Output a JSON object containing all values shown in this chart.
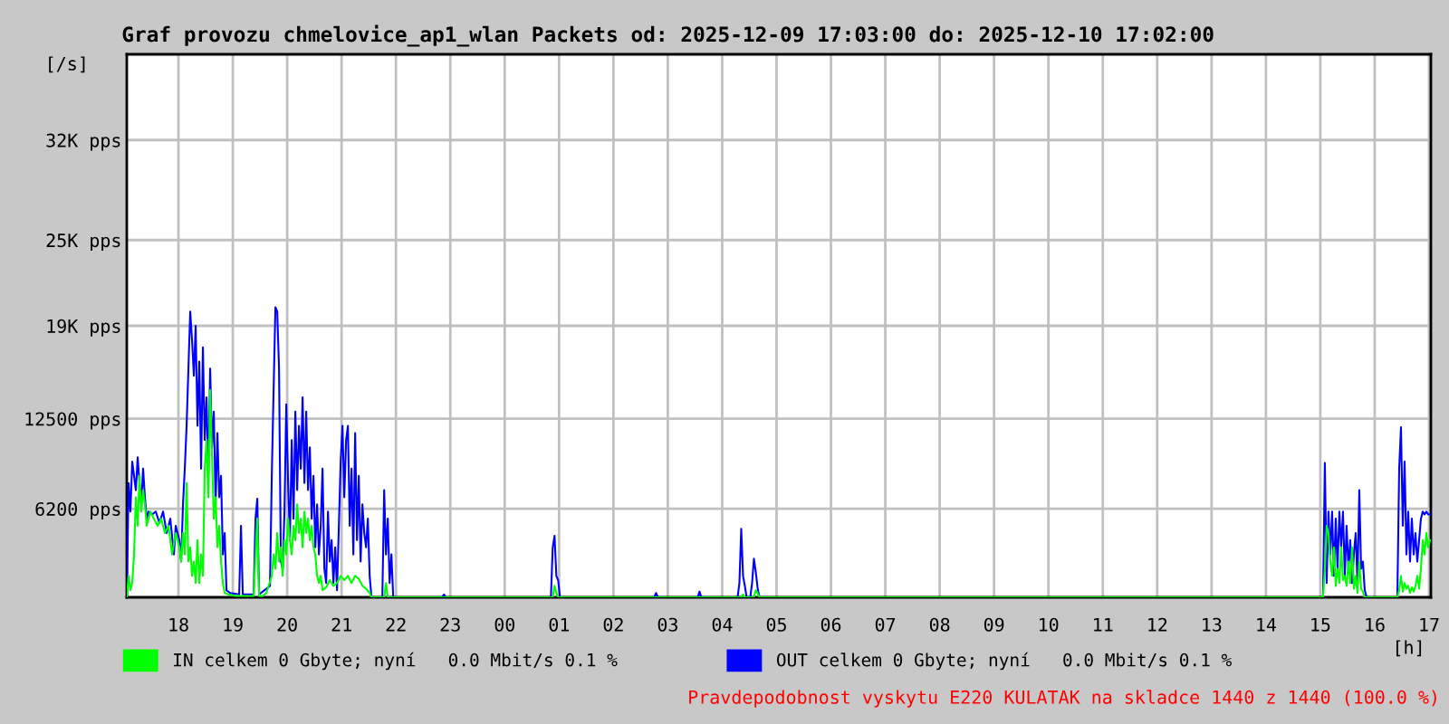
{
  "chart_data": {
    "type": "line",
    "title": "Graf provozu chmelovice_ap1_wlan Packets od: 2025-12-09 17:03:00 do: 2025-12-10 17:02:00",
    "xlabel": "[h]",
    "ylabel": "[/s]",
    "xlim": [
      "2025-12-09T17:03",
      "2025-12-10T17:02"
    ],
    "xticks": [
      {
        "value": "2025-12-09T18:00",
        "label": "18"
      },
      {
        "value": "2025-12-09T19:00",
        "label": "19"
      },
      {
        "value": "2025-12-09T20:00",
        "label": "20"
      },
      {
        "value": "2025-12-09T21:00",
        "label": "21"
      },
      {
        "value": "2025-12-09T22:00",
        "label": "22"
      },
      {
        "value": "2025-12-09T23:00",
        "label": "23"
      },
      {
        "value": "2025-12-10T00:00",
        "label": "00"
      },
      {
        "value": "2025-12-10T01:00",
        "label": "01"
      },
      {
        "value": "2025-12-10T02:00",
        "label": "02"
      },
      {
        "value": "2025-12-10T03:00",
        "label": "03"
      },
      {
        "value": "2025-12-10T04:00",
        "label": "04"
      },
      {
        "value": "2025-12-10T05:00",
        "label": "05"
      },
      {
        "value": "2025-12-10T06:00",
        "label": "06"
      },
      {
        "value": "2025-12-10T07:00",
        "label": "07"
      },
      {
        "value": "2025-12-10T08:00",
        "label": "08"
      },
      {
        "value": "2025-12-10T09:00",
        "label": "09"
      },
      {
        "value": "2025-12-10T10:00",
        "label": "10"
      },
      {
        "value": "2025-12-10T11:00",
        "label": "11"
      },
      {
        "value": "2025-12-10T12:00",
        "label": "12"
      },
      {
        "value": "2025-12-10T13:00",
        "label": "13"
      },
      {
        "value": "2025-12-10T14:00",
        "label": "14"
      },
      {
        "value": "2025-12-10T15:00",
        "label": "15"
      },
      {
        "value": "2025-12-10T16:00",
        "label": "16"
      },
      {
        "value": "2025-12-10T17:00",
        "label": "17"
      }
    ],
    "ylim": [
      0,
      38000
    ],
    "yticks": [
      {
        "value": 6200,
        "label": "6200 pps"
      },
      {
        "value": 12500,
        "label": "12500 pps"
      },
      {
        "value": 19000,
        "label": "19K pps"
      },
      {
        "value": 25000,
        "label": "25K pps"
      },
      {
        "value": 32000,
        "label": "32K pps"
      }
    ],
    "grid": true,
    "legend": "bottom",
    "marker": "none",
    "line_style": "solid",
    "annotations": [
      "Pravdepodobnost vyskytu E220 KULATAK na skladce 1440 z 1440 (100.0 %)"
    ],
    "series": [
      {
        "name": "IN celkem 0 Gbyte; nyní   0.0 Mbit/s 0.1 %",
        "color": "#00ff00",
        "x": [
          "2025-12-09T17:03",
          "2025-12-09T17:05",
          "2025-12-09T17:07",
          "2025-12-09T17:09",
          "2025-12-09T17:11",
          "2025-12-09T17:13",
          "2025-12-09T17:15",
          "2025-12-09T17:17",
          "2025-12-09T17:19",
          "2025-12-09T17:21",
          "2025-12-09T17:23",
          "2025-12-09T17:25",
          "2025-12-09T17:29",
          "2025-12-09T17:33",
          "2025-12-09T17:37",
          "2025-12-09T17:41",
          "2025-12-09T17:45",
          "2025-12-09T17:49",
          "2025-12-09T17:53",
          "2025-12-09T17:57",
          "2025-12-09T18:01",
          "2025-12-09T18:03",
          "2025-12-09T18:05",
          "2025-12-09T18:07",
          "2025-12-09T18:09",
          "2025-12-09T18:11",
          "2025-12-09T18:13",
          "2025-12-09T18:15",
          "2025-12-09T18:17",
          "2025-12-09T18:19",
          "2025-12-09T18:21",
          "2025-12-09T18:23",
          "2025-12-09T18:25",
          "2025-12-09T18:27",
          "2025-12-09T18:29",
          "2025-12-09T18:31",
          "2025-12-09T18:33",
          "2025-12-09T18:35",
          "2025-12-09T18:37",
          "2025-12-09T18:39",
          "2025-12-09T18:41",
          "2025-12-09T18:43",
          "2025-12-09T18:45",
          "2025-12-09T18:47",
          "2025-12-09T18:49",
          "2025-12-09T18:51",
          "2025-12-09T18:55",
          "2025-12-09T19:03",
          "2025-12-09T19:23",
          "2025-12-09T19:27",
          "2025-12-09T19:29",
          "2025-12-09T19:33",
          "2025-12-09T19:37",
          "2025-12-09T19:43",
          "2025-12-09T19:45",
          "2025-12-09T19:47",
          "2025-12-09T19:49",
          "2025-12-09T19:51",
          "2025-12-09T19:53",
          "2025-12-09T19:55",
          "2025-12-09T19:57",
          "2025-12-09T19:59",
          "2025-12-09T20:01",
          "2025-12-09T20:03",
          "2025-12-09T20:05",
          "2025-12-09T20:07",
          "2025-12-09T20:09",
          "2025-12-09T20:11",
          "2025-12-09T20:13",
          "2025-12-09T20:15",
          "2025-12-09T20:17",
          "2025-12-09T20:19",
          "2025-12-09T20:21",
          "2025-12-09T20:23",
          "2025-12-09T20:25",
          "2025-12-09T20:27",
          "2025-12-09T20:29",
          "2025-12-09T20:31",
          "2025-12-09T20:33",
          "2025-12-09T20:35",
          "2025-12-09T20:37",
          "2025-12-09T20:39",
          "2025-12-09T20:43",
          "2025-12-09T20:47",
          "2025-12-09T20:51",
          "2025-12-09T20:55",
          "2025-12-09T20:59",
          "2025-12-09T21:03",
          "2025-12-09T21:07",
          "2025-12-09T21:11",
          "2025-12-09T21:15",
          "2025-12-09T21:19",
          "2025-12-09T21:23",
          "2025-12-09T21:27",
          "2025-12-09T21:31",
          "2025-12-09T21:33",
          "2025-12-09T21:47",
          "2025-12-09T21:49",
          "2025-12-09T21:51",
          "2025-12-10T00:53",
          "2025-12-10T00:55",
          "2025-12-10T00:57",
          "2025-12-10T00:59",
          "2025-12-10T04:21",
          "2025-12-10T04:23",
          "2025-12-10T04:25",
          "2025-12-10T04:35",
          "2025-12-10T04:37",
          "2025-12-10T04:39",
          "2025-12-10T04:41",
          "2025-12-10T15:03",
          "2025-12-10T15:05",
          "2025-12-10T15:07",
          "2025-12-10T15:09",
          "2025-12-10T15:11",
          "2025-12-10T15:13",
          "2025-12-10T15:15",
          "2025-12-10T15:17",
          "2025-12-10T15:19",
          "2025-12-10T15:21",
          "2025-12-10T15:23",
          "2025-12-10T15:25",
          "2025-12-10T15:27",
          "2025-12-10T15:29",
          "2025-12-10T15:31",
          "2025-12-10T15:33",
          "2025-12-10T15:35",
          "2025-12-10T15:37",
          "2025-12-10T15:39",
          "2025-12-10T15:41",
          "2025-12-10T15:43",
          "2025-12-10T15:45",
          "2025-12-10T15:47",
          "2025-12-10T15:49",
          "2025-12-10T16:25",
          "2025-12-10T16:27",
          "2025-12-10T16:29",
          "2025-12-10T16:31",
          "2025-12-10T16:33",
          "2025-12-10T16:35",
          "2025-12-10T16:37",
          "2025-12-10T16:39",
          "2025-12-10T16:41",
          "2025-12-10T16:43",
          "2025-12-10T16:45",
          "2025-12-10T16:47",
          "2025-12-10T16:49",
          "2025-12-10T16:51",
          "2025-12-10T16:53",
          "2025-12-10T16:55",
          "2025-12-10T16:57",
          "2025-12-10T16:59",
          "2025-12-10T17:01"
        ],
        "values": [
          0,
          1500,
          500,
          1000,
          3000,
          7000,
          5000,
          8500,
          6000,
          7500,
          6500,
          5000,
          6000,
          5500,
          5000,
          5500,
          4500,
          5000,
          3000,
          4500,
          3500,
          2500,
          4500,
          3000,
          8000,
          2500,
          3500,
          1500,
          2500,
          1000,
          4000,
          1000,
          3000,
          1500,
          9000,
          11000,
          7000,
          14500,
          10000,
          5500,
          7000,
          3500,
          5000,
          2500,
          1000,
          300,
          200,
          100,
          100,
          5500,
          100,
          100,
          300,
          1500,
          3000,
          2000,
          4500,
          2500,
          3500,
          1500,
          4000,
          3000,
          5500,
          4000,
          3000,
          5000,
          4000,
          6500,
          4500,
          5500,
          3500,
          6000,
          4500,
          5500,
          4000,
          5000,
          3500,
          3000,
          1500,
          1000,
          1500,
          500,
          700,
          1200,
          800,
          1000,
          1500,
          1200,
          1500,
          1000,
          1500,
          1300,
          800,
          600,
          300,
          0,
          0,
          1000,
          0,
          0,
          800,
          300,
          0,
          0,
          200,
          0,
          0,
          500,
          300,
          0,
          0,
          2000,
          5000,
          4500,
          2500,
          1500,
          3500,
          800,
          2000,
          1000,
          3500,
          1200,
          1500,
          800,
          2500,
          1000,
          3500,
          600,
          1500,
          300,
          2500,
          600,
          400,
          0,
          0,
          500,
          1500,
          400,
          1000,
          600,
          800,
          300,
          700,
          400,
          800,
          1500,
          600,
          2000,
          4000,
          3000,
          4500,
          3500,
          4000
        ]
      },
      {
        "name": "OUT celkem 0 Gbyte; nyní   0.0 Mbit/s 0.1 %",
        "color": "#0000ff",
        "x": [
          "2025-12-09T17:03",
          "2025-12-09T17:05",
          "2025-12-09T17:07",
          "2025-12-09T17:09",
          "2025-12-09T17:13",
          "2025-12-09T17:15",
          "2025-12-09T17:17",
          "2025-12-09T17:19",
          "2025-12-09T17:21",
          "2025-12-09T17:23",
          "2025-12-09T17:25",
          "2025-12-09T17:27",
          "2025-12-09T17:31",
          "2025-12-09T17:35",
          "2025-12-09T17:39",
          "2025-12-09T17:43",
          "2025-12-09T17:47",
          "2025-12-09T17:51",
          "2025-12-09T17:55",
          "2025-12-09T17:57",
          "2025-12-09T18:01",
          "2025-12-09T18:03",
          "2025-12-09T18:05",
          "2025-12-09T18:07",
          "2025-12-09T18:09",
          "2025-12-09T18:11",
          "2025-12-09T18:13",
          "2025-12-09T18:15",
          "2025-12-09T18:17",
          "2025-12-09T18:19",
          "2025-12-09T18:21",
          "2025-12-09T18:23",
          "2025-12-09T18:25",
          "2025-12-09T18:27",
          "2025-12-09T18:29",
          "2025-12-09T18:31",
          "2025-12-09T18:33",
          "2025-12-09T18:35",
          "2025-12-09T18:37",
          "2025-12-09T18:39",
          "2025-12-09T18:41",
          "2025-12-09T18:43",
          "2025-12-09T18:45",
          "2025-12-09T18:47",
          "2025-12-09T18:49",
          "2025-12-09T18:51",
          "2025-12-09T18:53",
          "2025-12-09T18:57",
          "2025-12-09T19:07",
          "2025-12-09T19:09",
          "2025-12-09T19:11",
          "2025-12-09T19:23",
          "2025-12-09T19:25",
          "2025-12-09T19:27",
          "2025-12-09T19:29",
          "2025-12-09T19:41",
          "2025-12-09T19:43",
          "2025-12-09T19:45",
          "2025-12-09T19:47",
          "2025-12-09T19:49",
          "2025-12-09T19:51",
          "2025-12-09T19:53",
          "2025-12-09T19:55",
          "2025-12-09T19:57",
          "2025-12-09T19:59",
          "2025-12-09T20:01",
          "2025-12-09T20:03",
          "2025-12-09T20:05",
          "2025-12-09T20:07",
          "2025-12-09T20:09",
          "2025-12-09T20:11",
          "2025-12-09T20:13",
          "2025-12-09T20:15",
          "2025-12-09T20:17",
          "2025-12-09T20:19",
          "2025-12-09T20:21",
          "2025-12-09T20:23",
          "2025-12-09T20:25",
          "2025-12-09T20:27",
          "2025-12-09T20:29",
          "2025-12-09T20:31",
          "2025-12-09T20:33",
          "2025-12-09T20:35",
          "2025-12-09T20:37",
          "2025-12-09T20:39",
          "2025-12-09T20:41",
          "2025-12-09T20:43",
          "2025-12-09T20:45",
          "2025-12-09T20:47",
          "2025-12-09T20:49",
          "2025-12-09T20:51",
          "2025-12-09T20:53",
          "2025-12-09T20:55",
          "2025-12-09T20:57",
          "2025-12-09T20:59",
          "2025-12-09T21:01",
          "2025-12-09T21:03",
          "2025-12-09T21:05",
          "2025-12-09T21:07",
          "2025-12-09T21:09",
          "2025-12-09T21:11",
          "2025-12-09T21:13",
          "2025-12-09T21:15",
          "2025-12-09T21:17",
          "2025-12-09T21:19",
          "2025-12-09T21:21",
          "2025-12-09T21:23",
          "2025-12-09T21:25",
          "2025-12-09T21:27",
          "2025-12-09T21:29",
          "2025-12-09T21:31",
          "2025-12-09T21:33",
          "2025-12-09T21:45",
          "2025-12-09T21:47",
          "2025-12-09T21:49",
          "2025-12-09T21:51",
          "2025-12-09T21:53",
          "2025-12-09T21:55",
          "2025-12-09T21:57",
          "2025-12-09T22:51",
          "2025-12-09T22:53",
          "2025-12-09T22:55",
          "2025-12-10T00:51",
          "2025-12-10T00:53",
          "2025-12-10T00:55",
          "2025-12-10T00:57",
          "2025-12-10T00:59",
          "2025-12-10T01:01",
          "2025-12-10T02:45",
          "2025-12-10T02:47",
          "2025-12-10T02:49",
          "2025-12-10T03:33",
          "2025-12-10T03:35",
          "2025-12-10T03:37",
          "2025-12-10T04:17",
          "2025-12-10T04:19",
          "2025-12-10T04:21",
          "2025-12-10T04:23",
          "2025-12-10T04:25",
          "2025-12-10T04:27",
          "2025-12-10T04:31",
          "2025-12-10T04:33",
          "2025-12-10T04:35",
          "2025-12-10T04:37",
          "2025-12-10T04:39",
          "2025-12-10T04:41",
          "2025-12-10T15:03",
          "2025-12-10T15:05",
          "2025-12-10T15:07",
          "2025-12-10T15:09",
          "2025-12-10T15:11",
          "2025-12-10T15:13",
          "2025-12-10T15:15",
          "2025-12-10T15:17",
          "2025-12-10T15:19",
          "2025-12-10T15:21",
          "2025-12-10T15:23",
          "2025-12-10T15:25",
          "2025-12-10T15:27",
          "2025-12-10T15:29",
          "2025-12-10T15:31",
          "2025-12-10T15:33",
          "2025-12-10T15:35",
          "2025-12-10T15:37",
          "2025-12-10T15:39",
          "2025-12-10T15:41",
          "2025-12-10T15:43",
          "2025-12-10T15:45",
          "2025-12-10T15:47",
          "2025-12-10T15:49",
          "2025-12-10T15:51",
          "2025-12-10T16:25",
          "2025-12-10T16:27",
          "2025-12-10T16:29",
          "2025-12-10T16:31",
          "2025-12-10T16:33",
          "2025-12-10T16:35",
          "2025-12-10T16:37",
          "2025-12-10T16:39",
          "2025-12-10T16:41",
          "2025-12-10T16:43",
          "2025-12-10T16:45",
          "2025-12-10T16:47",
          "2025-12-10T16:49",
          "2025-12-10T16:51",
          "2025-12-10T16:53",
          "2025-12-10T16:55",
          "2025-12-10T16:57",
          "2025-12-10T16:59",
          "2025-12-10T17:01"
        ],
        "values": [
          0,
          8000,
          6000,
          9500,
          7500,
          9800,
          8000,
          6500,
          9000,
          7000,
          5500,
          6000,
          5800,
          6000,
          5200,
          6000,
          4500,
          5500,
          3000,
          5000,
          4000,
          2500,
          6500,
          9000,
          12000,
          16000,
          20000,
          18000,
          15500,
          19000,
          12000,
          16500,
          9000,
          17500,
          11000,
          14000,
          8500,
          16000,
          10500,
          13000,
          6500,
          11500,
          7000,
          8500,
          3000,
          4500,
          500,
          300,
          200,
          5000,
          200,
          200,
          5500,
          6900,
          200,
          800,
          8500,
          14500,
          20300,
          20000,
          16000,
          2500,
          2000,
          6000,
          13500,
          8000,
          4000,
          11000,
          5500,
          13000,
          7500,
          12000,
          9000,
          14000,
          8000,
          13000,
          7500,
          10500,
          5500,
          8500,
          3500,
          6500,
          3000,
          5000,
          9000,
          2000,
          1000,
          6000,
          2500,
          4000,
          1000,
          3500,
          500,
          5000,
          9500,
          12000,
          7000,
          11000,
          12000,
          5000,
          9000,
          3000,
          11500,
          4000,
          8500,
          2500,
          6500,
          4500,
          3500,
          5500,
          1500,
          0,
          0,
          7500,
          3000,
          5500,
          1000,
          3000,
          0,
          0,
          200,
          0,
          0,
          3500,
          4300,
          1500,
          1200,
          0,
          0,
          300,
          0,
          0,
          400,
          0,
          0,
          1000,
          4800,
          1500,
          800,
          0,
          0,
          1000,
          2700,
          1800,
          700,
          0,
          0,
          9400,
          1000,
          6000,
          3000,
          6000,
          1500,
          5500,
          2000,
          6000,
          3500,
          6000,
          1500,
          5000,
          2000,
          4000,
          1000,
          3000,
          4500,
          1000,
          7500,
          2000,
          2500,
          500,
          0,
          0,
          9000,
          11900,
          5000,
          9500,
          3000,
          6000,
          2500,
          5500,
          3000,
          4500,
          2500,
          4000,
          5500,
          6000,
          5800,
          6000,
          5800,
          5800
        ]
      }
    ]
  }
}
